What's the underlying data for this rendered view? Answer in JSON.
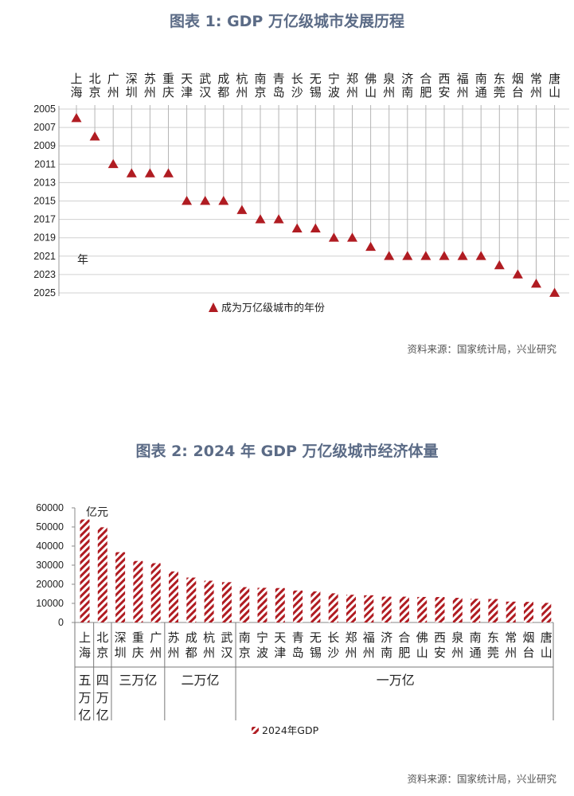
{
  "figure1": {
    "title": "图表 1:  GDP 万亿级城市发展历程",
    "source": "资料来源：国家统计局，兴业研究",
    "chart_data": {
      "type": "scatter",
      "title": "",
      "ylabel": "年",
      "y_inverted": true,
      "ylim": [
        2005,
        2025
      ],
      "y_ticks": [
        "2005",
        "2007",
        "2009",
        "2011",
        "2013",
        "2015",
        "2017",
        "2019",
        "2021",
        "2023",
        "2025"
      ],
      "categories": [
        "上海",
        "北京",
        "广州",
        "深圳",
        "苏州",
        "重庆",
        "天津",
        "武汉",
        "成都",
        "杭州",
        "南京",
        "青岛",
        "长沙",
        "无锡",
        "宁波",
        "郑州",
        "佛山",
        "泉州",
        "济南",
        "合肥",
        "西安",
        "福州",
        "南通",
        "东莞",
        "烟台",
        "常州",
        "唐山"
      ],
      "series": [
        {
          "name": "成为万亿级城市的年份",
          "values": [
            2006,
            2008,
            2011,
            2012,
            2012,
            2012,
            2015,
            2015,
            2015,
            2016,
            2017,
            2017,
            2018,
            2018,
            2019,
            2019,
            2020,
            2021,
            2021,
            2021,
            2021,
            2021,
            2021,
            2022,
            2023,
            2024,
            2025
          ]
        }
      ],
      "colors": {
        "marker": "#b01c22",
        "stem": "#b5b5b5",
        "grid": "#d0d0d0"
      },
      "legend_position": "bottom-center",
      "grid": true
    }
  },
  "figure2": {
    "title": "图表 2:      2024 年 GDP 万亿级城市经济体量",
    "source": "资料来源：国家统计局，兴业研究",
    "chart_data": {
      "type": "bar",
      "title": "",
      "ylabel": "亿元",
      "ylim": [
        0,
        60000
      ],
      "y_ticks": [
        "0",
        "10000",
        "20000",
        "30000",
        "40000",
        "50000",
        "60000"
      ],
      "categories": [
        "上海",
        "北京",
        "深圳",
        "重庆",
        "广州",
        "苏州",
        "成都",
        "杭州",
        "武汉",
        "南京",
        "宁波",
        "天津",
        "青岛",
        "无锡",
        "长沙",
        "郑州",
        "福州",
        "济南",
        "合肥",
        "佛山",
        "西安",
        "泉州",
        "南通",
        "东莞",
        "常州",
        "烟台",
        "唐山"
      ],
      "series": [
        {
          "name": "2024年GDP",
          "values": [
            53927,
            49843,
            36802,
            32193,
            31032,
            26727,
            23511,
            21860,
            21106,
            18500,
            18148,
            18024,
            16719,
            16263,
            15269,
            14533,
            14238,
            13528,
            13508,
            13362,
            13318,
            12903,
            12422,
            12282,
            10917,
            10780,
            10257
          ]
        }
      ],
      "groups": [
        {
          "label": "五万亿",
          "from": 0,
          "to": 0
        },
        {
          "label": "四万亿",
          "from": 1,
          "to": 1
        },
        {
          "label": "三万亿",
          "from": 2,
          "to": 4
        },
        {
          "label": "二万亿",
          "from": 5,
          "to": 8
        },
        {
          "label": "一万亿",
          "from": 9,
          "to": 26
        }
      ],
      "colors": {
        "bar_stripe": "#b01c22",
        "bar_bg": "#ffffff",
        "axis": "#888888",
        "grid": "#d9d9d9"
      },
      "legend_position": "bottom-center",
      "grid": false
    }
  }
}
